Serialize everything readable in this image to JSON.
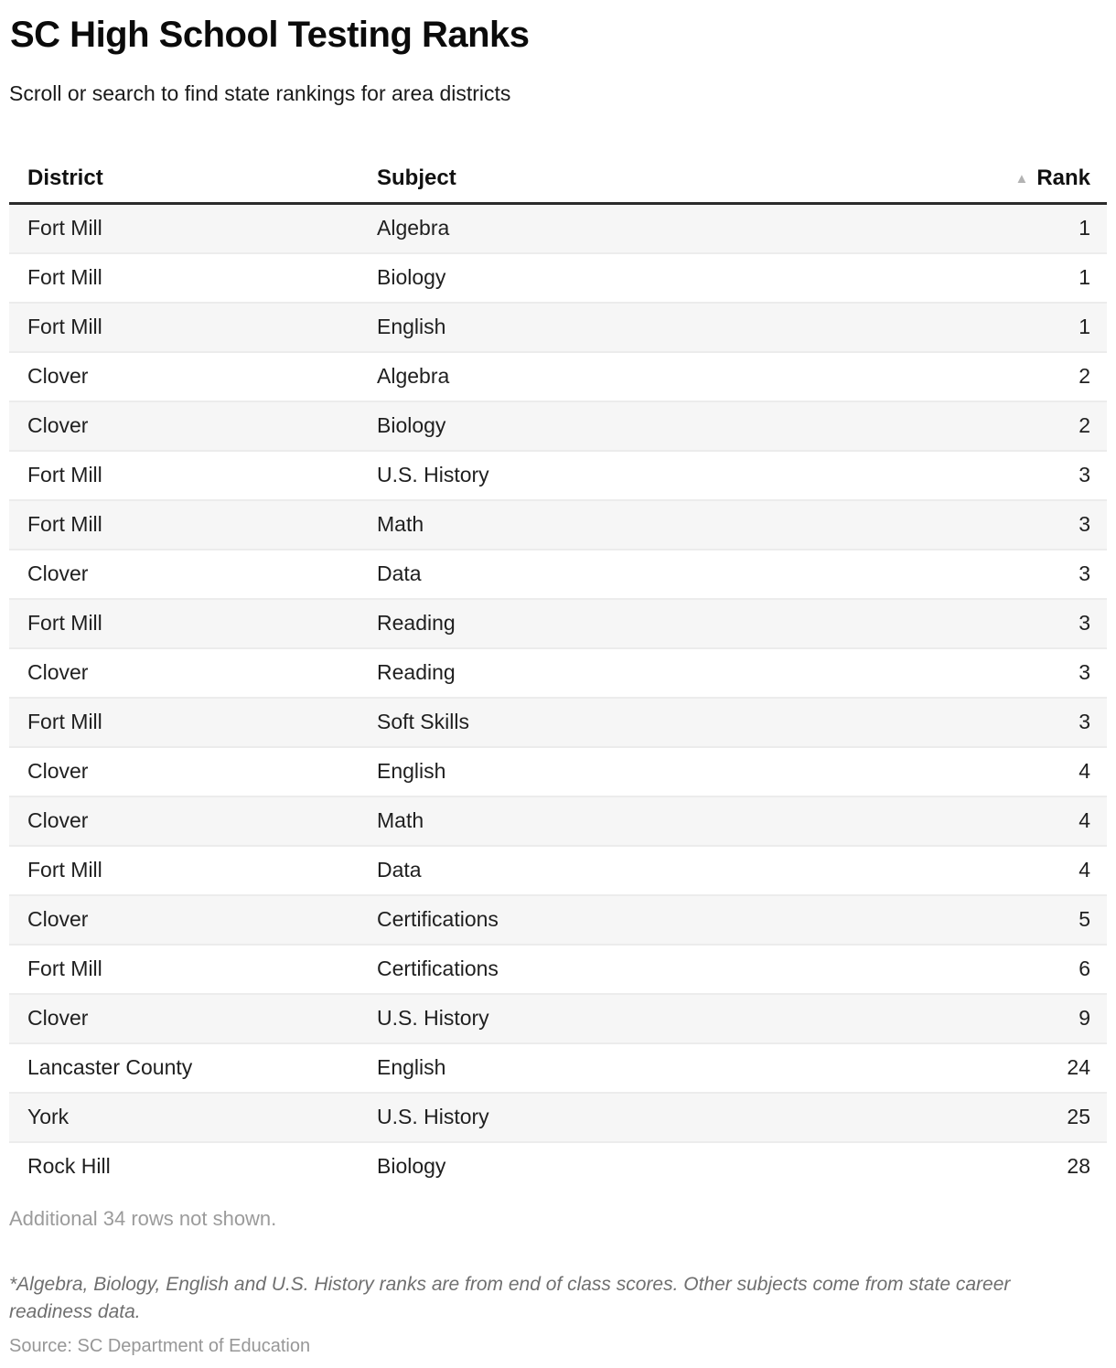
{
  "header": {
    "title": "SC High School Testing Ranks",
    "subtitle": "Scroll or search to find state rankings for area districts"
  },
  "table": {
    "columns": {
      "district": "District",
      "subject": "Subject",
      "rank": "Rank"
    },
    "sort_icon": "▲",
    "sorted_column": "Rank",
    "sort_direction": "ascending",
    "rows": [
      {
        "district": "Fort Mill",
        "subject": "Algebra",
        "rank": "1"
      },
      {
        "district": "Fort Mill",
        "subject": "Biology",
        "rank": "1"
      },
      {
        "district": "Fort Mill",
        "subject": "English",
        "rank": "1"
      },
      {
        "district": "Clover",
        "subject": "Algebra",
        "rank": "2"
      },
      {
        "district": "Clover",
        "subject": "Biology",
        "rank": "2"
      },
      {
        "district": "Fort Mill",
        "subject": "U.S. History",
        "rank": "3"
      },
      {
        "district": "Fort Mill",
        "subject": "Math",
        "rank": "3"
      },
      {
        "district": "Clover",
        "subject": "Data",
        "rank": "3"
      },
      {
        "district": "Fort Mill",
        "subject": "Reading",
        "rank": "3"
      },
      {
        "district": "Clover",
        "subject": "Reading",
        "rank": "3"
      },
      {
        "district": "Fort Mill",
        "subject": "Soft Skills",
        "rank": "3"
      },
      {
        "district": "Clover",
        "subject": "English",
        "rank": "4"
      },
      {
        "district": "Clover",
        "subject": "Math",
        "rank": "4"
      },
      {
        "district": "Fort Mill",
        "subject": "Data",
        "rank": "4"
      },
      {
        "district": "Clover",
        "subject": "Certifications",
        "rank": "5"
      },
      {
        "district": "Fort Mill",
        "subject": "Certifications",
        "rank": "6"
      },
      {
        "district": "Clover",
        "subject": "U.S. History",
        "rank": "9"
      },
      {
        "district": "Lancaster County",
        "subject": "English",
        "rank": "24"
      },
      {
        "district": "York",
        "subject": "U.S. History",
        "rank": "25"
      },
      {
        "district": "Rock Hill",
        "subject": "Biology",
        "rank": "28"
      }
    ]
  },
  "footer": {
    "more_rows_note": "Additional 34 rows not shown.",
    "footnote": "*Algebra, Biology, English and U.S. History ranks are from end of class scores. Other subjects come from state career readiness data.",
    "source": "Source: SC Department of Education"
  },
  "colors": {
    "header_border": "#2b2b2b",
    "row_alt_background": "#f6f6f6",
    "row_separator": "#ececec",
    "sort_icon": "#b3b3b3",
    "muted_text": "#9b9b9b",
    "footnote_text": "#6f6f6f",
    "source_text": "#979797"
  }
}
